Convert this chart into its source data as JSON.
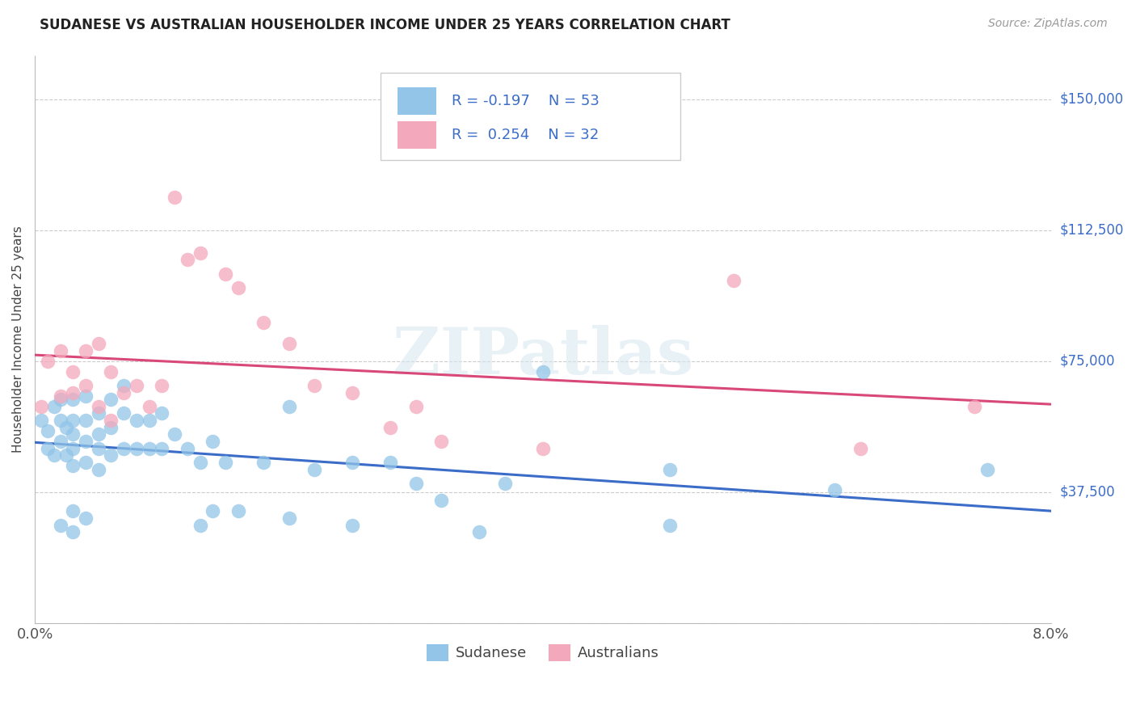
{
  "title": "SUDANESE VS AUSTRALIAN HOUSEHOLDER INCOME UNDER 25 YEARS CORRELATION CHART",
  "source": "Source: ZipAtlas.com",
  "ylabel": "Householder Income Under 25 years",
  "x_min": 0.0,
  "x_max": 0.08,
  "y_min": 0,
  "y_max": 162500,
  "x_ticks": [
    0.0,
    0.01,
    0.02,
    0.03,
    0.04,
    0.05,
    0.06,
    0.07,
    0.08
  ],
  "y_ticks": [
    0,
    37500,
    75000,
    112500,
    150000
  ],
  "y_tick_labels": [
    "",
    "$37,500",
    "$75,000",
    "$112,500",
    "$150,000"
  ],
  "sudanese_R": -0.197,
  "sudanese_N": 53,
  "australians_R": 0.254,
  "australians_N": 32,
  "sudanese_color": "#92C5E8",
  "australians_color": "#F4A8BB",
  "trend_sudanese_color": "#3B6CC8",
  "trend_australians_color": "#D84878",
  "watermark": "ZIPatlas",
  "sudanese_x": [
    0.0005,
    0.001,
    0.001,
    0.0015,
    0.0015,
    0.002,
    0.002,
    0.002,
    0.0025,
    0.0025,
    0.003,
    0.003,
    0.003,
    0.003,
    0.003,
    0.004,
    0.004,
    0.004,
    0.004,
    0.005,
    0.005,
    0.005,
    0.005,
    0.006,
    0.006,
    0.006,
    0.007,
    0.007,
    0.007,
    0.008,
    0.008,
    0.009,
    0.009,
    0.01,
    0.01,
    0.011,
    0.012,
    0.013,
    0.014,
    0.015,
    0.016,
    0.018,
    0.02,
    0.022,
    0.025,
    0.028,
    0.03,
    0.032,
    0.037,
    0.04,
    0.05,
    0.063,
    0.075
  ],
  "sudanese_y": [
    58000,
    55000,
    50000,
    62000,
    48000,
    64000,
    58000,
    52000,
    56000,
    48000,
    64000,
    58000,
    54000,
    50000,
    45000,
    65000,
    58000,
    52000,
    46000,
    60000,
    54000,
    50000,
    44000,
    64000,
    56000,
    48000,
    68000,
    60000,
    50000,
    58000,
    50000,
    58000,
    50000,
    60000,
    50000,
    54000,
    50000,
    46000,
    52000,
    46000,
    32000,
    46000,
    62000,
    44000,
    46000,
    46000,
    40000,
    35000,
    40000,
    72000,
    44000,
    38000,
    44000
  ],
  "sudanese_low_x": [
    0.002,
    0.003,
    0.003,
    0.004,
    0.013,
    0.014,
    0.02,
    0.025,
    0.035,
    0.05
  ],
  "sudanese_low_y": [
    28000,
    32000,
    26000,
    30000,
    28000,
    32000,
    30000,
    28000,
    26000,
    28000
  ],
  "australians_x": [
    0.0005,
    0.001,
    0.002,
    0.002,
    0.003,
    0.003,
    0.004,
    0.004,
    0.005,
    0.005,
    0.006,
    0.006,
    0.007,
    0.008,
    0.009,
    0.01,
    0.011,
    0.012,
    0.013,
    0.015,
    0.016,
    0.018,
    0.02,
    0.022,
    0.025,
    0.028,
    0.03,
    0.032,
    0.04,
    0.055,
    0.065,
    0.074
  ],
  "australians_y": [
    62000,
    75000,
    78000,
    65000,
    72000,
    66000,
    78000,
    68000,
    80000,
    62000,
    72000,
    58000,
    66000,
    68000,
    62000,
    68000,
    122000,
    104000,
    106000,
    100000,
    96000,
    86000,
    80000,
    68000,
    66000,
    56000,
    62000,
    52000,
    50000,
    98000,
    50000,
    62000
  ]
}
